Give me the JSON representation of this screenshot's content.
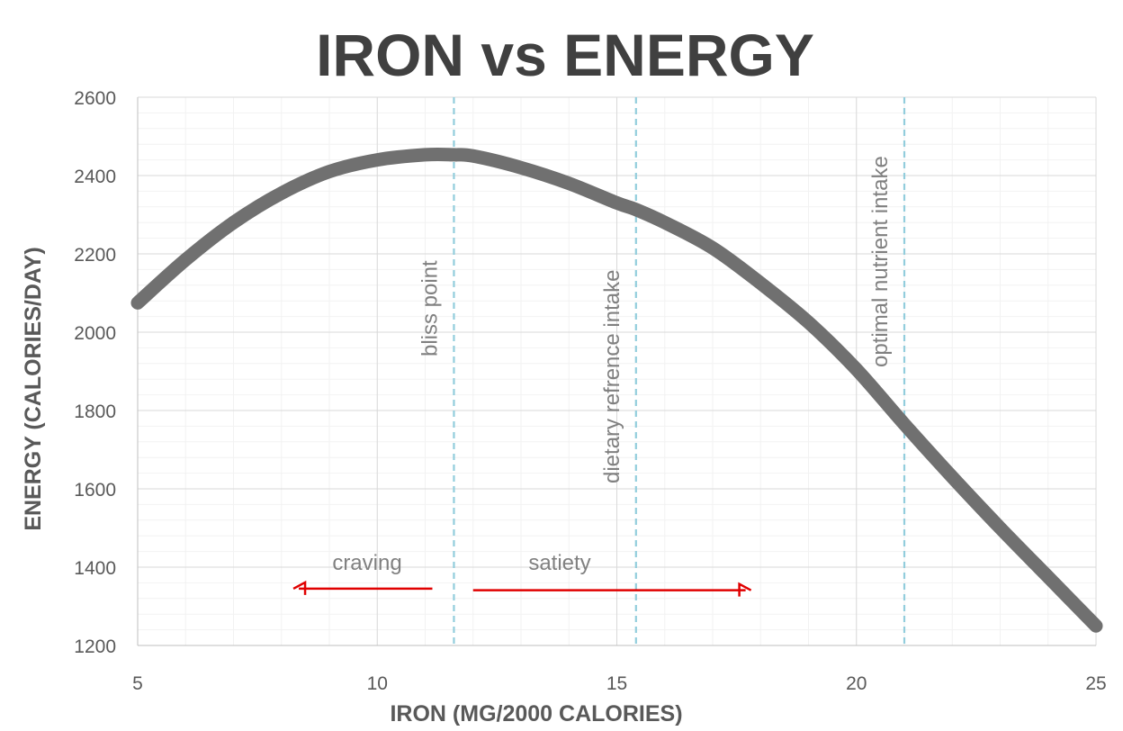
{
  "chart_data": {
    "type": "line",
    "title": "IRON vs ENERGY",
    "xlabel": "IRON (MG/2000 CALORIES)",
    "ylabel": "ENERGY (CALORIES/DAY)",
    "xlim": [
      5,
      25
    ],
    "ylim": [
      1200,
      2600
    ],
    "xticks": [
      5,
      10,
      15,
      20,
      25
    ],
    "yticks": [
      1200,
      1400,
      1600,
      1800,
      2000,
      2200,
      2400,
      2600
    ],
    "grid": true,
    "series": [
      {
        "name": "energy",
        "color": "#707070",
        "x": [
          5,
          6,
          7,
          8,
          9,
          10,
          11,
          11.6,
          12,
          13,
          14,
          15,
          15.4,
          16,
          17,
          18,
          19,
          20,
          21,
          22,
          23,
          24,
          25
        ],
        "y": [
          2075,
          2185,
          2280,
          2355,
          2410,
          2440,
          2453,
          2453,
          2450,
          2420,
          2380,
          2330,
          2313,
          2280,
          2215,
          2125,
          2025,
          1905,
          1765,
          1630,
          1500,
          1375,
          1250
        ]
      }
    ],
    "vlines": [
      {
        "x": 11.6,
        "label": "bliss point",
        "color": "#92CDDC"
      },
      {
        "x": 15.4,
        "label": "dietary refrence intake",
        "color": "#92CDDC"
      },
      {
        "x": 21.0,
        "label": "optimal nutrient intake",
        "color": "#92CDDC"
      }
    ],
    "arrows": [
      {
        "label": "craving",
        "direction": "left",
        "from_x": 11.15,
        "to_x": 8.25,
        "y": 1345,
        "color": "#E00000"
      },
      {
        "label": "satiety",
        "direction": "right",
        "from_x": 12.0,
        "to_x": 17.8,
        "y": 1341,
        "color": "#E00000"
      }
    ]
  }
}
